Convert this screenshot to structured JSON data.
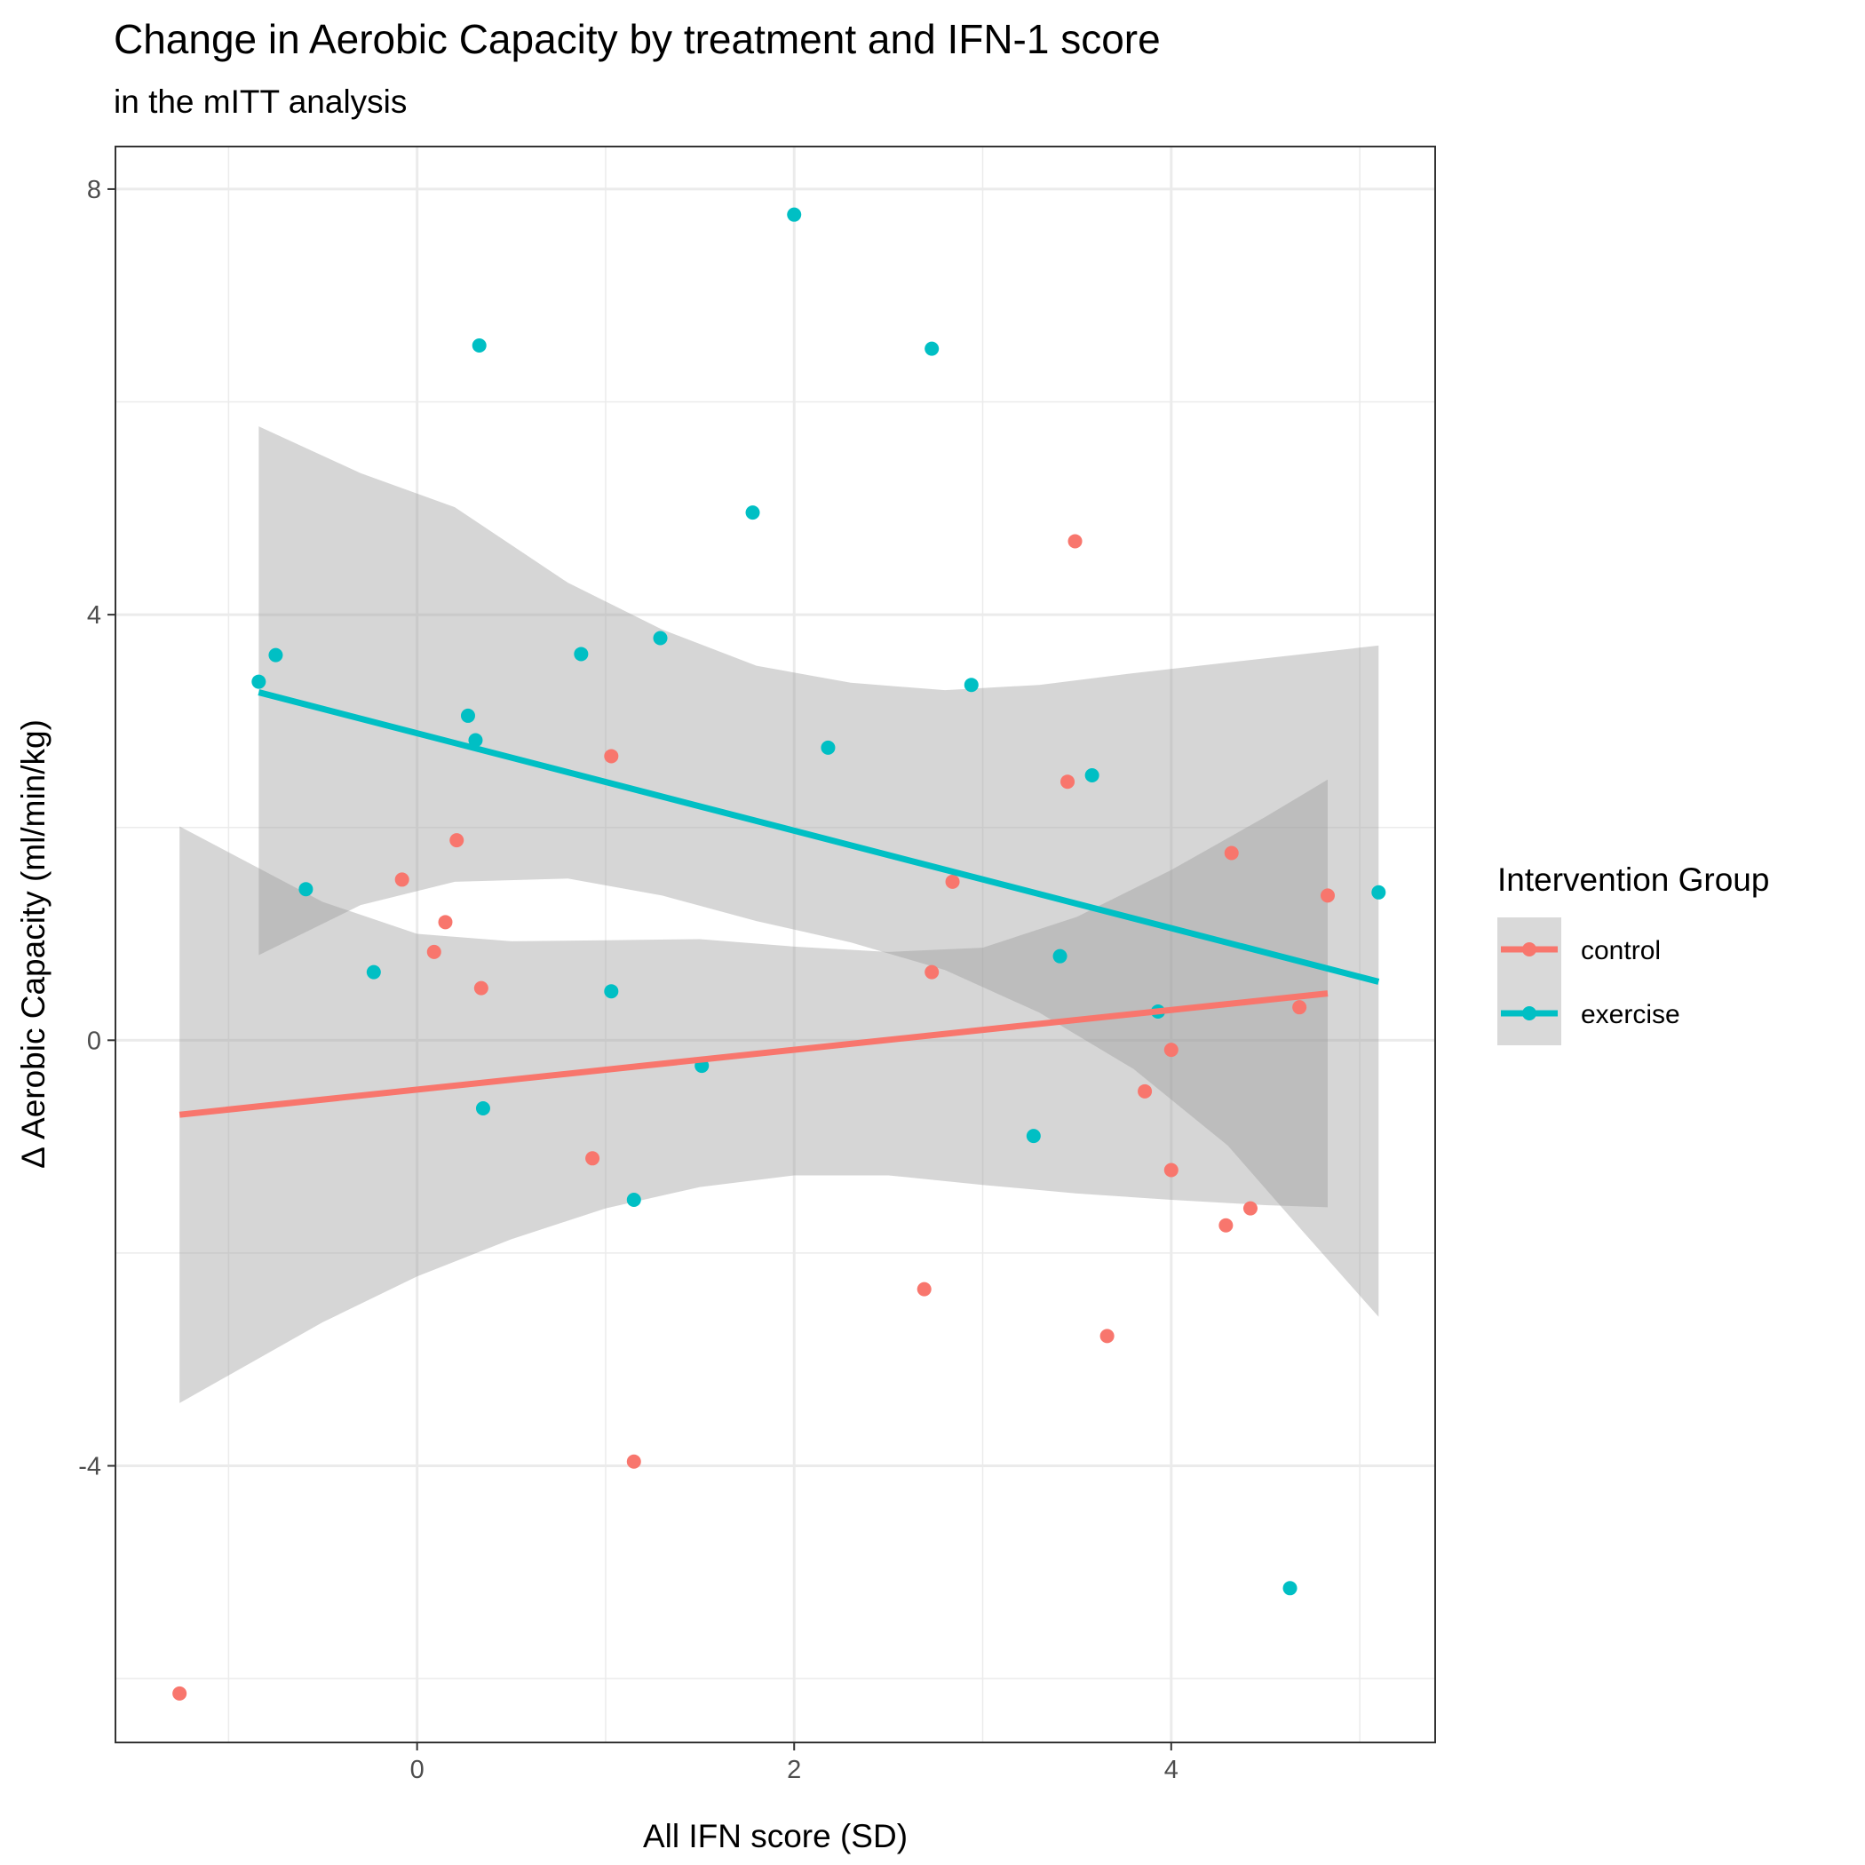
{
  "chart_data": {
    "type": "scatter",
    "title": "Change in Aerobic Capacity by treatment and IFN-1 score",
    "subtitle": "in the mITT analysis",
    "xlabel": "All IFN score (SD)",
    "ylabel": "Δ Aerobic Capacity (ml/min/kg)",
    "xlim": [
      -1.6,
      5.4
    ],
    "ylim": [
      -6.6,
      8.4
    ],
    "x_ticks": [
      0,
      2,
      4
    ],
    "y_ticks": [
      -4,
      0,
      4,
      8
    ],
    "x_tick_labels": [
      "0",
      "2",
      "4"
    ],
    "y_tick_labels": [
      "-4",
      "0",
      "4",
      "8"
    ],
    "grid": true,
    "legend": {
      "title": "Intervention Group",
      "position": "right",
      "items": [
        "control",
        "exercise"
      ]
    },
    "colors": {
      "control": "#F8766D",
      "exercise": "#00BFC4",
      "ribbon": "#999999"
    },
    "series": [
      {
        "name": "control",
        "points": [
          [
            -1.26,
            -6.14
          ],
          [
            -0.08,
            1.51
          ],
          [
            0.09,
            0.83
          ],
          [
            0.15,
            1.11
          ],
          [
            0.21,
            1.88
          ],
          [
            0.34,
            0.49
          ],
          [
            0.93,
            -1.11
          ],
          [
            1.03,
            2.67
          ],
          [
            1.15,
            -3.96
          ],
          [
            2.69,
            -2.34
          ],
          [
            2.73,
            0.64
          ],
          [
            2.84,
            1.49
          ],
          [
            3.45,
            2.43
          ],
          [
            3.49,
            4.69
          ],
          [
            3.66,
            -2.78
          ],
          [
            3.86,
            -0.48
          ],
          [
            4.0,
            -0.09
          ],
          [
            4.0,
            -1.22
          ],
          [
            4.29,
            -1.74
          ],
          [
            4.32,
            1.76
          ],
          [
            4.42,
            -1.58
          ],
          [
            4.68,
            0.31
          ],
          [
            4.83,
            1.36
          ]
        ],
        "fit": {
          "x": [
            -1.26,
            4.83
          ],
          "y": [
            -0.7,
            0.44
          ]
        },
        "ribbon": {
          "x": [
            -1.26,
            -0.5,
            0.0,
            0.5,
            1.0,
            1.5,
            2.0,
            2.5,
            3.0,
            3.5,
            4.0,
            4.5,
            4.83
          ],
          "lower": [
            -3.41,
            -2.65,
            -2.22,
            -1.87,
            -1.58,
            -1.38,
            -1.27,
            -1.27,
            -1.36,
            -1.44,
            -1.5,
            -1.55,
            -1.57
          ],
          "upper": [
            2.01,
            1.3,
            1.0,
            0.93,
            0.94,
            0.95,
            0.88,
            0.83,
            0.87,
            1.16,
            1.6,
            2.1,
            2.45
          ]
        }
      },
      {
        "name": "exercise",
        "points": [
          [
            -0.84,
            3.37
          ],
          [
            -0.75,
            3.62
          ],
          [
            -0.59,
            1.42
          ],
          [
            -0.23,
            0.64
          ],
          [
            0.27,
            3.05
          ],
          [
            0.31,
            2.82
          ],
          [
            0.33,
            6.53
          ],
          [
            0.35,
            -0.64
          ],
          [
            0.87,
            3.63
          ],
          [
            1.03,
            0.46
          ],
          [
            1.15,
            -1.5
          ],
          [
            1.29,
            3.78
          ],
          [
            1.51,
            -0.24
          ],
          [
            1.78,
            4.96
          ],
          [
            2.0,
            7.76
          ],
          [
            2.18,
            2.75
          ],
          [
            2.73,
            6.5
          ],
          [
            2.94,
            3.34
          ],
          [
            3.27,
            -0.9
          ],
          [
            3.41,
            0.79
          ],
          [
            3.58,
            2.49
          ],
          [
            3.93,
            0.27
          ],
          [
            4.63,
            -5.15
          ],
          [
            5.1,
            1.39
          ]
        ],
        "fit": {
          "x": [
            -0.84,
            5.1
          ],
          "y": [
            3.27,
            0.55
          ]
        },
        "ribbon": {
          "x": [
            -0.84,
            -0.3,
            0.2,
            0.8,
            1.3,
            1.8,
            2.3,
            2.8,
            3.3,
            3.8,
            4.3,
            4.7,
            5.1
          ],
          "lower": [
            0.8,
            1.27,
            1.49,
            1.52,
            1.36,
            1.12,
            0.92,
            0.66,
            0.26,
            -0.27,
            -0.99,
            -1.8,
            -2.6
          ],
          "upper": [
            5.77,
            5.33,
            5.01,
            4.3,
            3.86,
            3.52,
            3.36,
            3.29,
            3.34,
            3.45,
            3.55,
            3.63,
            3.71
          ]
        }
      }
    ]
  }
}
